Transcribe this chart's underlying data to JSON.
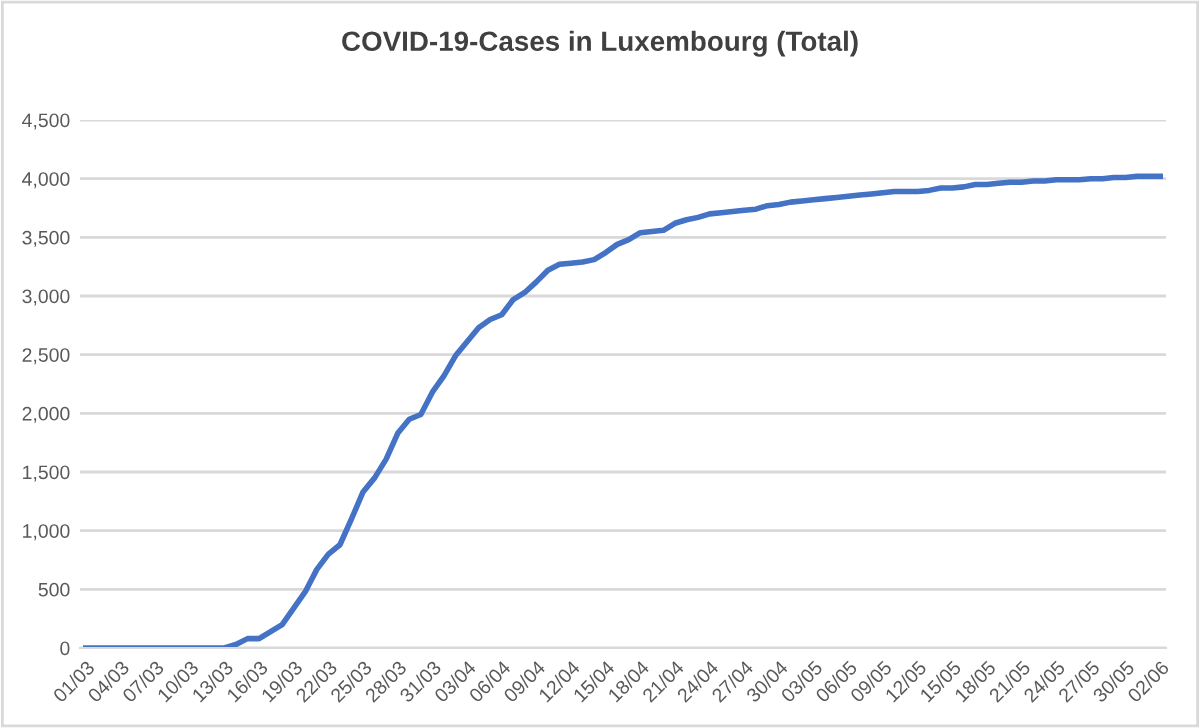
{
  "chart_data": {
    "type": "line",
    "title": "COVID-19-Cases in Luxembourg (Total)",
    "categories": [
      "01/03",
      null,
      null,
      "04/03",
      null,
      null,
      "07/03",
      null,
      null,
      "10/03",
      null,
      null,
      "13/03",
      null,
      null,
      "16/03",
      null,
      null,
      "19/03",
      null,
      null,
      "22/03",
      null,
      null,
      "25/03",
      null,
      null,
      "28/03",
      null,
      null,
      "31/03",
      null,
      null,
      "03/04",
      null,
      null,
      "06/04",
      null,
      null,
      "09/04",
      null,
      null,
      "12/04",
      null,
      null,
      "15/04",
      null,
      null,
      "18/04",
      null,
      null,
      "21/04",
      null,
      null,
      "24/04",
      null,
      null,
      "27/04",
      null,
      null,
      "30/04",
      null,
      null,
      "03/05",
      null,
      null,
      "06/05",
      null,
      null,
      "09/05",
      null,
      null,
      "12/05",
      null,
      null,
      "15/05",
      null,
      null,
      "18/05",
      null,
      null,
      "21/05",
      null,
      null,
      "24/05",
      null,
      null,
      "27/05",
      null,
      null,
      "30/05",
      null,
      null,
      "02/06"
    ],
    "series": [
      {
        "color": "#4472c4",
        "values": [
          0,
          0,
          0,
          0,
          0,
          0,
          0,
          0,
          0,
          0,
          0,
          0,
          0,
          30,
          80,
          80,
          140,
          200,
          340,
          480,
          670,
          800,
          880,
          1100,
          1330,
          1450,
          1610,
          1830,
          1950,
          1990,
          2180,
          2320,
          2490,
          2610,
          2730,
          2800,
          2840,
          2970,
          3030,
          3120,
          3220,
          3270,
          3280,
          3290,
          3310,
          3370,
          3440,
          3480,
          3540,
          3550,
          3560,
          3620,
          3650,
          3670,
          3700,
          3710,
          3720,
          3730,
          3740,
          3770,
          3780,
          3800,
          3810,
          3820,
          3830,
          3840,
          3850,
          3860,
          3870,
          3880,
          3890,
          3890,
          3890,
          3900,
          3920,
          3920,
          3930,
          3950,
          3950,
          3960,
          3970,
          3970,
          3980,
          3980,
          3990,
          3990,
          3990,
          4000,
          4000,
          4010,
          4010,
          4020,
          4020,
          4020
        ]
      }
    ],
    "ylim": [
      0,
      4500
    ],
    "yticks": [
      0,
      {
        "value": 500,
        "label": "500"
      },
      {
        "value": 1000,
        "label": "1,000"
      },
      {
        "value": 1500,
        "label": "1,500"
      },
      {
        "value": 2000,
        "label": "2,000"
      },
      {
        "value": 2500,
        "label": "2,500"
      },
      {
        "value": 3000,
        "label": "3,000"
      },
      {
        "value": 3500,
        "label": "3,500"
      },
      {
        "value": 4000,
        "label": "4,000"
      },
      {
        "value": 4500,
        "label": "4,500"
      }
    ],
    "grid": "y",
    "marker": "none",
    "line_style": "solid"
  }
}
